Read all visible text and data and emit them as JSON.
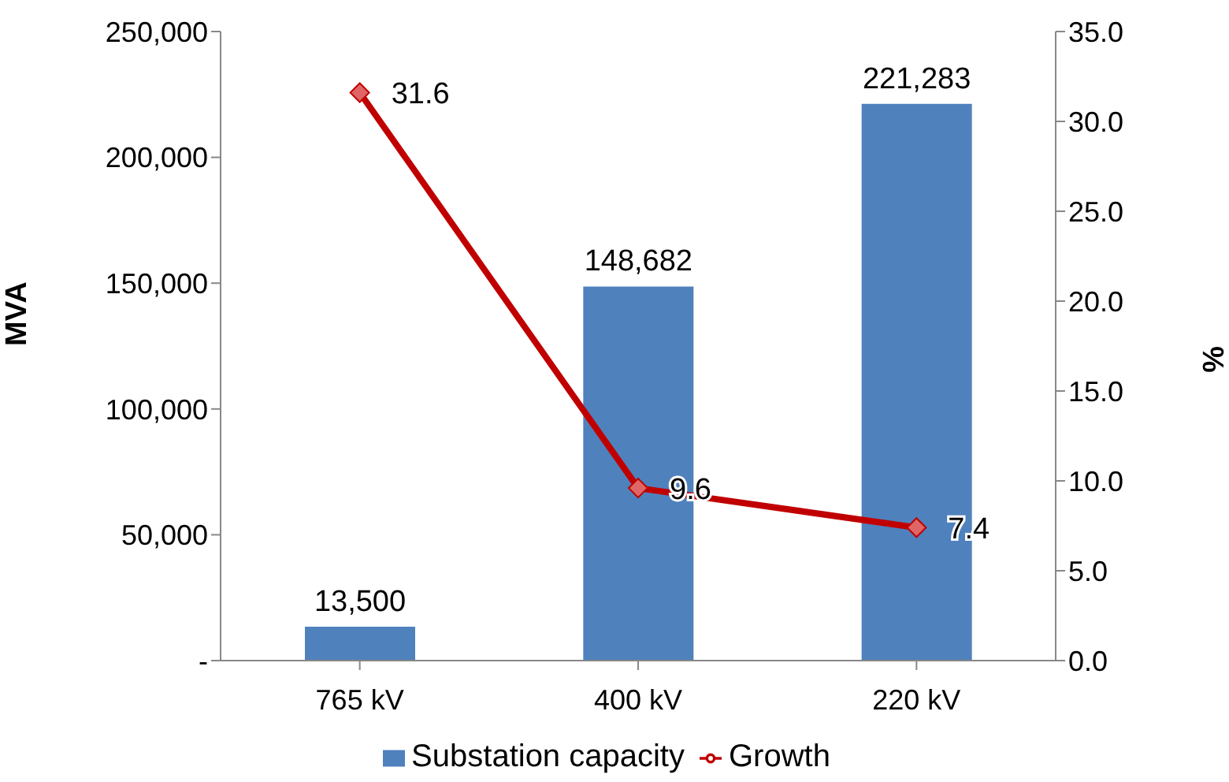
{
  "chart_data": {
    "type": "bar",
    "categories": [
      "765 kV",
      "400 kV",
      "220 kV"
    ],
    "series": [
      {
        "name": "Substation capacity",
        "color": "#4f81bd",
        "values": [
          13500,
          148682,
          221283
        ],
        "value_labels": [
          "13,500",
          "148,682",
          "221,283"
        ]
      },
      {
        "name": "Growth",
        "type": "line",
        "axis": "y2",
        "color": "#c00000",
        "values": [
          31.6,
          9.6,
          7.4
        ],
        "value_labels": [
          "31.6",
          "9.6",
          "7.4"
        ],
        "marker": "diamond"
      }
    ],
    "ylabel": "MVA",
    "y2label": "%",
    "ylim": [
      0,
      250000
    ],
    "yticks": [
      {
        "value": 0,
        "label": "-"
      },
      {
        "value": 50000,
        "label": "50,000"
      },
      {
        "value": 100000,
        "label": "100,000"
      },
      {
        "value": 150000,
        "label": "150,000"
      },
      {
        "value": 200000,
        "label": "200,000"
      },
      {
        "value": 250000,
        "label": "250,000"
      }
    ],
    "y2lim": [
      0,
      35
    ],
    "y2ticks": [
      {
        "value": 0,
        "label": "0.0"
      },
      {
        "value": 5,
        "label": "5.0"
      },
      {
        "value": 10,
        "label": "10.0"
      },
      {
        "value": 15,
        "label": "15.0"
      },
      {
        "value": 20,
        "label": "20.0"
      },
      {
        "value": 25,
        "label": "25.0"
      },
      {
        "value": 30,
        "label": "30.0"
      },
      {
        "value": 35,
        "label": "35.0"
      }
    ],
    "grid": false,
    "legend": "bottom"
  }
}
